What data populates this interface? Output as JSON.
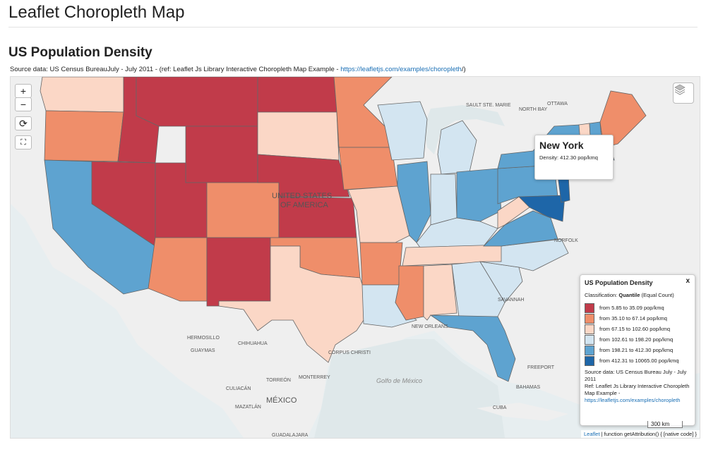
{
  "page": {
    "title": "Leaflet Choropleth Map",
    "subtitle": "US Population Density",
    "source_prefix": "Source data: US Census BureauJuly - July 2011 - (ref: Leaflet Js Library Interactive Choropleth Map Example - ",
    "source_link": "https://leafletjs.com/examples/choropleth",
    "source_suffix": "/)"
  },
  "controls": {
    "zoom_in": "+",
    "zoom_out": "−",
    "reset": "⟳",
    "fullscreen": "⛶"
  },
  "tooltip": {
    "name": "New York",
    "density": "Density: 412.30 pop/kmq"
  },
  "legend": {
    "title": "US Population Density",
    "close": "x",
    "classification_label": "Classification: ",
    "classification_method": "Quantile",
    "classification_suffix": " (Equal Count)",
    "classes": [
      {
        "label": "from 5.85 to 35.09 pop/kmq",
        "color": "#c13b4a"
      },
      {
        "label": "from 35.10 to 67.14 pop/kmq",
        "color": "#ef8e6a"
      },
      {
        "label": "from 67.15 to 102.60 pop/kmq",
        "color": "#fbd7c6"
      },
      {
        "label": "from 102.61 to 198.20 pop/kmq",
        "color": "#d3e5f1"
      },
      {
        "label": "from 198.21 to 412.30 pop/kmq",
        "color": "#5ea3d0"
      },
      {
        "label": "from 412.31 to 10065.00 pop/kmq",
        "color": "#1e66a8"
      }
    ],
    "source_line1": "Source data: US Census Bureau July - July 2011",
    "source_line2": "Ref: Leaflet Js Library Interactive Choropleth Map Example - ",
    "source_link": "https://leafletjs.com/examples/choropleth"
  },
  "scale": "300 km",
  "attribution": {
    "leaflet": "Leaflet",
    "rest": " | function getAttribution() { [native code] }"
  },
  "map_labels": {
    "country_us_1": "UNITED STATES",
    "country_us_2": "OF AMERICA",
    "mexico": "MÉXICO",
    "gulf": "Golfo de México",
    "cuba": "CUBA",
    "bahamas": "BAHAMAS",
    "ottawa": "OTTAWA",
    "north_bay": "NORTH BAY",
    "sault": "SAULT STE. MARIE",
    "hermosillo": "HERMOSILLO",
    "chihuahua": "CHIHUAHUA",
    "guaymas": "GUAYMAS",
    "culiacan": "CULIACÁN",
    "torreon": "TORREÓN",
    "monterrey": "MONTERREY",
    "mazatlan": "MAZATLÁN",
    "guadalajara": "GUADALAJARA",
    "new_orleans": "NEW ORLEANS",
    "corpus": "CORPUS CHRISTI",
    "freeport": "FREEPORT",
    "norfolk": "NORFOLK",
    "savannah": "SAVANNAH"
  }
}
